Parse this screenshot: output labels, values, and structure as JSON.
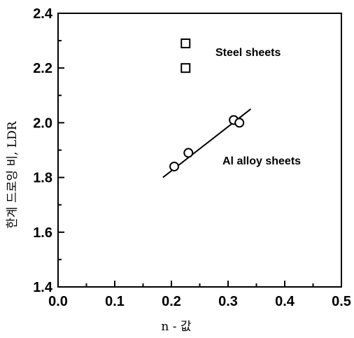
{
  "chart_data": {
    "type": "scatter",
    "xlabel": "n - 값",
    "ylabel": "한계 드로잉 비, LDR",
    "xlim": [
      0.0,
      0.5
    ],
    "ylim": [
      1.4,
      2.4
    ],
    "x_ticks": [
      "0.0",
      "0.1",
      "0.2",
      "0.3",
      "0.4",
      "0.5"
    ],
    "y_ticks": [
      "1.4",
      "1.6",
      "1.8",
      "2.0",
      "2.2",
      "2.4"
    ],
    "series": [
      {
        "name": "Steel sheets",
        "marker": "square",
        "points": [
          {
            "x": 0.225,
            "y": 2.29
          },
          {
            "x": 0.225,
            "y": 2.2
          }
        ]
      },
      {
        "name": "Al alloy sheets",
        "marker": "circle",
        "points": [
          {
            "x": 0.205,
            "y": 1.84
          },
          {
            "x": 0.23,
            "y": 1.89
          },
          {
            "x": 0.31,
            "y": 2.01
          },
          {
            "x": 0.32,
            "y": 2.0
          }
        ]
      }
    ],
    "fit_line": {
      "series": "Al alloy sheets",
      "from": {
        "x": 0.185,
        "y": 1.8
      },
      "to": {
        "x": 0.34,
        "y": 2.05
      }
    },
    "grid": false,
    "legend": "none"
  }
}
